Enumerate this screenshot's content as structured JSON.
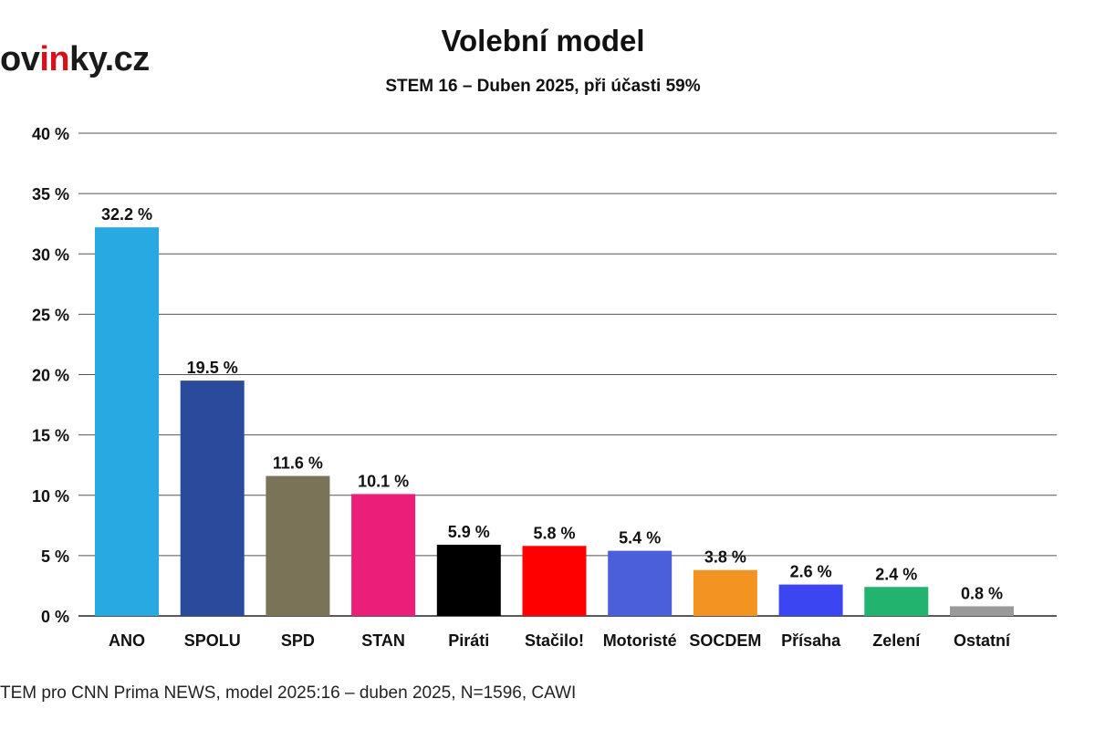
{
  "logo": {
    "text_before": "ov",
    "text_accent": "in",
    "text_after": "ky.cz"
  },
  "header": {
    "title": "Volební model",
    "subtitle": "STEM 16 – Duben 2025, při účasti 59%"
  },
  "footer": {
    "source": "TEM pro CNN Prima NEWS, model 2025:16 – duben 2025, N=1596, CAWI"
  },
  "chart_data": {
    "type": "bar",
    "title": "Volební model",
    "subtitle": "STEM 16 – Duben 2025, při účasti 59%",
    "xlabel": "",
    "ylabel": "",
    "ylim": [
      0,
      40
    ],
    "yticks": [
      0,
      5,
      10,
      15,
      20,
      25,
      30,
      35,
      40
    ],
    "ytick_labels": [
      "0 %",
      "5 %",
      "10 %",
      "15 %",
      "20 %",
      "25 %",
      "30 %",
      "35 %",
      "40 %"
    ],
    "grid": true,
    "legend": "none",
    "categories": [
      "ANO",
      "SPOLU",
      "SPD",
      "STAN",
      "Piráti",
      "Stačilo!",
      "Motoristé",
      "SOCDEM",
      "Přísaha",
      "Zelení",
      "Ostatní"
    ],
    "values": [
      32.2,
      19.5,
      11.6,
      10.1,
      5.9,
      5.8,
      5.4,
      3.8,
      2.6,
      2.4,
      0.8
    ],
    "value_labels": [
      "32.2 %",
      "19.5 %",
      "11.6 %",
      "10.1 %",
      "5.9 %",
      "5.8 %",
      "5.4 %",
      "3.8 %",
      "2.6 %",
      "2.4 %",
      "0.8 %"
    ],
    "colors": [
      "#29a9e1",
      "#2a4b9b",
      "#7a7358",
      "#eb1f7a",
      "#000000",
      "#ff0000",
      "#4a5fd9",
      "#f39322",
      "#3b45f2",
      "#22b36e",
      "#9a9a9a"
    ]
  }
}
